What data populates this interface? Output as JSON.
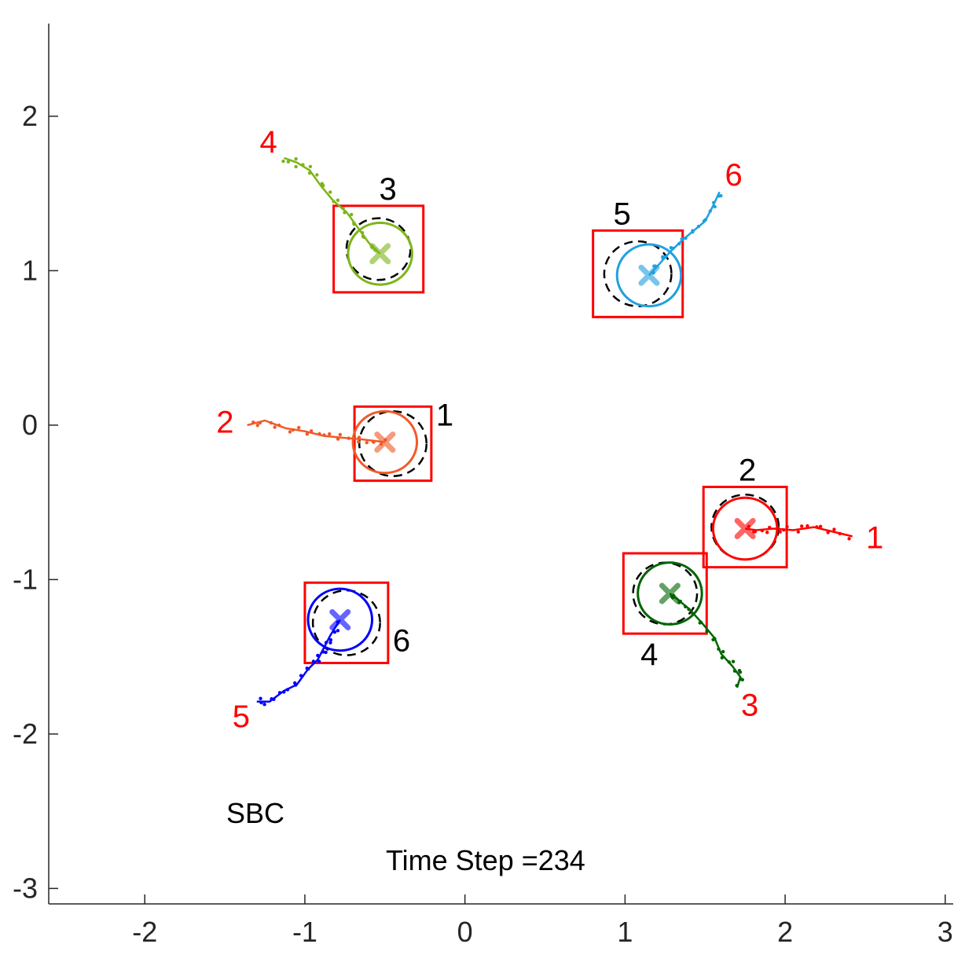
{
  "chart_data": {
    "type": "scatter",
    "xlim": [
      -2.6,
      3.05
    ],
    "ylim": [
      -3.1,
      2.6
    ],
    "x_ticks": [
      -2,
      -1,
      0,
      1,
      2,
      3
    ],
    "y_ticks": [
      -3,
      -2,
      -1,
      0,
      1,
      2
    ],
    "x_tick_labels": [
      "-2",
      "-1",
      "0",
      "1",
      "2",
      "3"
    ],
    "y_tick_labels": [
      "-3",
      "-2",
      "-1",
      "0",
      "1",
      "2"
    ],
    "grid": false,
    "annotations": {
      "method_label": "SBC",
      "time_step_label": "Time Step =234"
    },
    "label_colors": {
      "agent_label": "#ff0000",
      "goal_label": "#000000",
      "goal_box": "#ff0000",
      "goal_circle": "#000000"
    },
    "agents": [
      {
        "label": "1",
        "color": "#ff0000",
        "pos": [
          1.75,
          -0.67
        ],
        "radius": 0.2,
        "trail": [
          [
            2.42,
            -0.72
          ],
          [
            2.3,
            -0.69
          ],
          [
            2.18,
            -0.66
          ],
          [
            2.05,
            -0.68
          ],
          [
            1.93,
            -0.67
          ],
          [
            1.82,
            -0.68
          ],
          [
            1.75,
            -0.67
          ]
        ],
        "goal_label": "2",
        "goal": [
          1.75,
          -0.66
        ],
        "goal_radius": 0.21,
        "box_half": 0.26
      },
      {
        "label": "2",
        "color": "#f05a28",
        "pos": [
          -0.5,
          -0.11
        ],
        "radius": 0.2,
        "trail": [
          [
            -1.36,
            0.0
          ],
          [
            -1.25,
            0.03
          ],
          [
            -1.12,
            -0.02
          ],
          [
            -1.0,
            -0.04
          ],
          [
            -0.88,
            -0.07
          ],
          [
            -0.78,
            -0.08
          ],
          [
            -0.66,
            -0.09
          ],
          [
            -0.58,
            -0.1
          ],
          [
            -0.5,
            -0.11
          ]
        ],
        "goal_label": "1",
        "goal": [
          -0.45,
          -0.12
        ],
        "goal_radius": 0.21,
        "box_half": 0.24
      },
      {
        "label": "3",
        "color": "#006400",
        "pos": [
          1.28,
          -1.09
        ],
        "radius": 0.2,
        "trail": [
          [
            1.7,
            -1.7
          ],
          [
            1.72,
            -1.63
          ],
          [
            1.67,
            -1.56
          ],
          [
            1.6,
            -1.48
          ],
          [
            1.56,
            -1.38
          ],
          [
            1.48,
            -1.28
          ],
          [
            1.4,
            -1.19
          ],
          [
            1.33,
            -1.13
          ],
          [
            1.28,
            -1.09
          ]
        ],
        "goal_label": "4",
        "goal": [
          1.25,
          -1.09
        ],
        "goal_radius": 0.2,
        "box_half": 0.26
      },
      {
        "label": "4",
        "color": "#7cb518",
        "pos": [
          -0.53,
          1.11
        ],
        "radius": 0.2,
        "trail": [
          [
            -1.13,
            1.73
          ],
          [
            -1.05,
            1.7
          ],
          [
            -0.97,
            1.65
          ],
          [
            -0.9,
            1.55
          ],
          [
            -0.82,
            1.45
          ],
          [
            -0.74,
            1.38
          ],
          [
            -0.67,
            1.28
          ],
          [
            -0.6,
            1.18
          ],
          [
            -0.53,
            1.11
          ]
        ],
        "goal_label": "3",
        "goal": [
          -0.54,
          1.14
        ],
        "goal_radius": 0.2,
        "box_half": 0.28
      },
      {
        "label": "5",
        "color": "#0000ff",
        "pos": [
          -0.78,
          -1.26
        ],
        "radius": 0.2,
        "trail": [
          [
            -1.3,
            -1.79
          ],
          [
            -1.22,
            -1.79
          ],
          [
            -1.13,
            -1.72
          ],
          [
            -1.05,
            -1.68
          ],
          [
            -0.98,
            -1.58
          ],
          [
            -0.92,
            -1.52
          ],
          [
            -0.88,
            -1.44
          ],
          [
            -0.84,
            -1.36
          ],
          [
            -0.78,
            -1.26
          ]
        ],
        "goal_label": "6",
        "goal": [
          -0.74,
          -1.28
        ],
        "goal_radius": 0.21,
        "box_half": 0.26
      },
      {
        "label": "6",
        "color": "#1fa0e0",
        "pos": [
          1.15,
          0.97
        ],
        "radius": 0.2,
        "trail": [
          [
            1.59,
            1.51
          ],
          [
            1.55,
            1.42
          ],
          [
            1.5,
            1.32
          ],
          [
            1.43,
            1.26
          ],
          [
            1.36,
            1.2
          ],
          [
            1.28,
            1.12
          ],
          [
            1.22,
            1.05
          ],
          [
            1.15,
            0.97
          ]
        ],
        "goal_label": "5",
        "goal": [
          1.08,
          0.98
        ],
        "goal_radius": 0.21,
        "box_half": 0.28
      }
    ]
  }
}
